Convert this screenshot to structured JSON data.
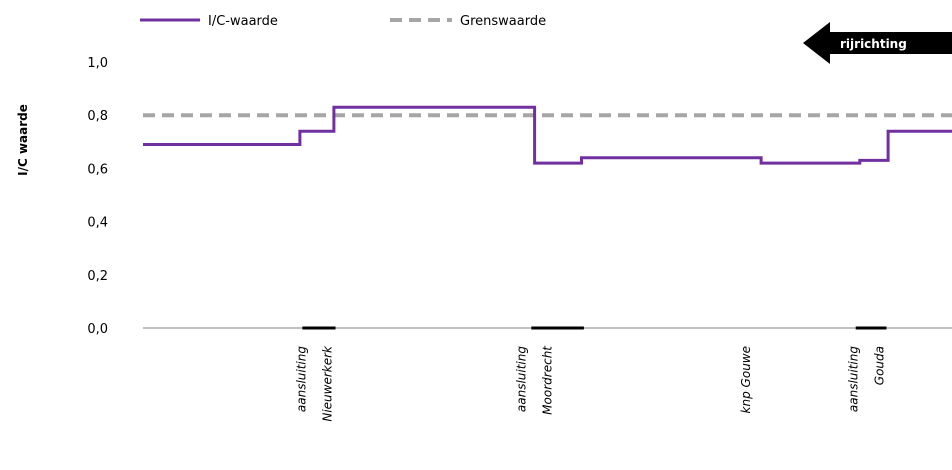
{
  "chart_data": {
    "type": "line",
    "ylabel": "I/C waarde",
    "xlabel": "",
    "ylim": [
      0,
      1.0
    ],
    "yticks": [
      "0,0",
      "0,2",
      "0,4",
      "0,6",
      "0,8",
      "1,0"
    ],
    "ytick_values": [
      0,
      0.2,
      0.4,
      0.6,
      0.8,
      1.0
    ],
    "x_range": [
      0,
      100
    ],
    "grid": false,
    "legend_position": "top",
    "direction_label": "rijrichting",
    "categories": [
      {
        "lines": [
          "aansluiting",
          "Nieuwerkerk"
        ],
        "x": 21.1
      },
      {
        "lines": [
          "aansluiting",
          "Moordrecht"
        ],
        "x": 48.3
      },
      {
        "lines": [
          "knp Gouwe"
        ],
        "x": 74.4
      },
      {
        "lines": [
          "aansluiting",
          "Gouda"
        ],
        "x": 89.3
      }
    ],
    "markers": [
      {
        "x_start": 19.7,
        "x_end": 23.8
      },
      {
        "x_start": 48.0,
        "x_end": 54.5
      },
      {
        "x_start": 88.1,
        "x_end": 91.9
      }
    ],
    "series": [
      {
        "name": "I/C-waarde",
        "color": "#7030a0",
        "style": "solid",
        "x": [
          0,
          19.4,
          19.4,
          23.6,
          23.6,
          48.4,
          48.4,
          54.2,
          54.2,
          76.4,
          76.4,
          88.6,
          88.6,
          92.1,
          92.1,
          100
        ],
        "y": [
          0.69,
          0.69,
          0.74,
          0.74,
          0.83,
          0.83,
          0.62,
          0.62,
          0.64,
          0.64,
          0.62,
          0.62,
          0.63,
          0.63,
          0.74,
          0.74
        ]
      },
      {
        "name": "Grenswaarde",
        "color": "#a6a6a6",
        "style": "dashed",
        "x": [
          0,
          100
        ],
        "y": [
          0.8,
          0.8
        ]
      }
    ]
  }
}
